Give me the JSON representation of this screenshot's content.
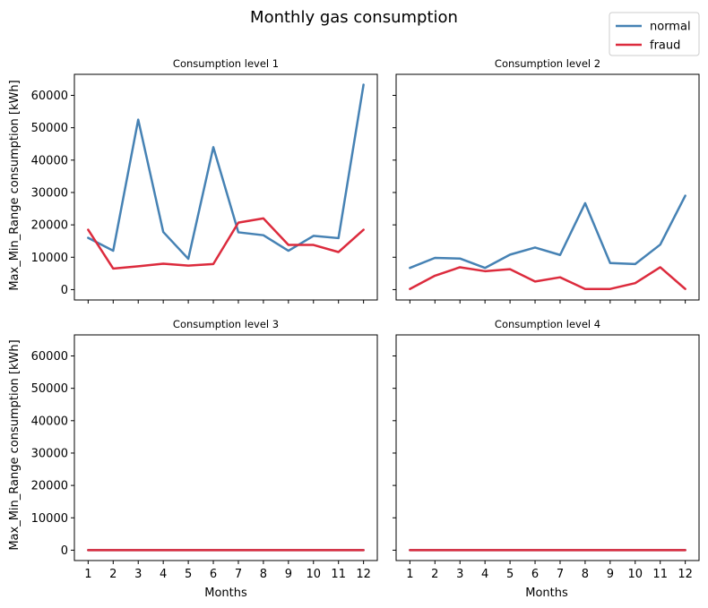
{
  "figure": {
    "title": "Monthly gas consumption"
  },
  "legend": {
    "placement": "top-right",
    "items": [
      {
        "label": "normal",
        "color": "#4682b4"
      },
      {
        "label": "fraud",
        "color": "#dc2b3d"
      }
    ]
  },
  "axes": {
    "ylabel": "Max_Min_Range consumption [kWh]",
    "xlabel": "Months",
    "x_ticks": [
      "1",
      "2",
      "3",
      "4",
      "5",
      "6",
      "7",
      "8",
      "9",
      "10",
      "11",
      "12"
    ],
    "y_ticks": [
      "0",
      "10000",
      "20000",
      "30000",
      "40000",
      "50000",
      "60000"
    ]
  },
  "chart_data": [
    {
      "type": "line",
      "title": "Consumption level 1",
      "x": [
        1,
        2,
        3,
        4,
        5,
        6,
        7,
        8,
        9,
        10,
        11,
        12
      ],
      "ylim": [
        -3200,
        66500
      ],
      "series": [
        {
          "name": "normal",
          "color": "#4682b4",
          "values": [
            16000,
            12000,
            52500,
            17800,
            9500,
            44000,
            17700,
            16800,
            12000,
            16600,
            15900,
            63300
          ]
        },
        {
          "name": "fraud",
          "color": "#dc2b3d",
          "values": [
            18500,
            6500,
            7200,
            8000,
            7400,
            7900,
            20700,
            22000,
            13800,
            13800,
            11600,
            18500
          ]
        }
      ]
    },
    {
      "type": "line",
      "title": "Consumption level 2",
      "x": [
        1,
        2,
        3,
        4,
        5,
        6,
        7,
        8,
        9,
        10,
        11,
        12
      ],
      "ylim": [
        -3200,
        66500
      ],
      "series": [
        {
          "name": "normal",
          "color": "#4682b4",
          "values": [
            6700,
            9800,
            9600,
            6700,
            10800,
            13000,
            10700,
            26700,
            8200,
            7900,
            13900,
            29000
          ]
        },
        {
          "name": "fraud",
          "color": "#dc2b3d",
          "values": [
            200,
            4300,
            6900,
            5700,
            6300,
            2500,
            3800,
            200,
            200,
            2000,
            6900,
            200
          ]
        }
      ]
    },
    {
      "type": "line",
      "title": "Consumption level 3",
      "x": [
        1,
        2,
        3,
        4,
        5,
        6,
        7,
        8,
        9,
        10,
        11,
        12
      ],
      "ylim": [
        -3200,
        66500
      ],
      "series": [
        {
          "name": "normal",
          "color": "#4682b4",
          "values": [
            0,
            0,
            0,
            0,
            0,
            0,
            0,
            0,
            0,
            0,
            0,
            0
          ]
        },
        {
          "name": "fraud",
          "color": "#dc2b3d",
          "values": [
            0,
            0,
            0,
            0,
            0,
            0,
            0,
            0,
            0,
            0,
            0,
            0
          ]
        }
      ]
    },
    {
      "type": "line",
      "title": "Consumption level 4",
      "x": [
        1,
        2,
        3,
        4,
        5,
        6,
        7,
        8,
        9,
        10,
        11,
        12
      ],
      "ylim": [
        -3200,
        66500
      ],
      "series": [
        {
          "name": "normal",
          "color": "#4682b4",
          "values": [
            0,
            0,
            0,
            0,
            0,
            0,
            0,
            0,
            0,
            0,
            0,
            0
          ]
        },
        {
          "name": "fraud",
          "color": "#dc2b3d",
          "values": [
            0,
            0,
            0,
            0,
            0,
            0,
            0,
            0,
            0,
            0,
            0,
            0
          ]
        }
      ]
    }
  ]
}
